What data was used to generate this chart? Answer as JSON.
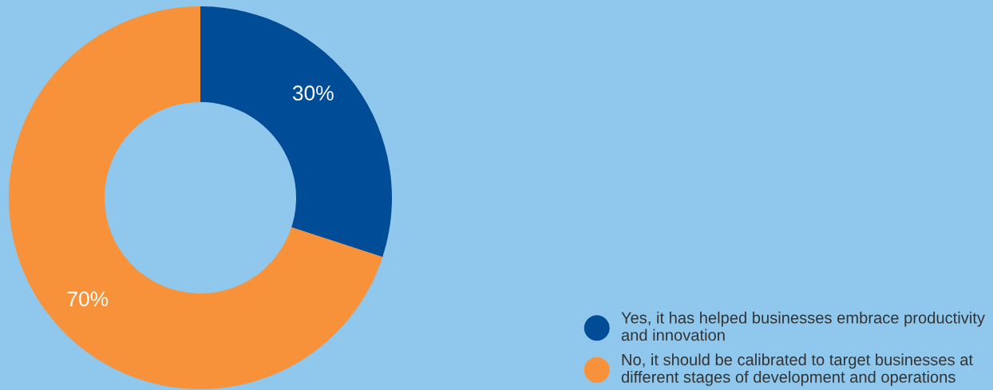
{
  "chart_data": {
    "type": "donut",
    "categories": [
      "Yes, it has helped businesses embrace productivity\nand innovation",
      "No, it should be calibrated to target businesses at\ndifferent stages of development and operations"
    ],
    "values": [
      30,
      70
    ],
    "colors": [
      "#004c97",
      "#f7923a"
    ],
    "value_labels": [
      "30%",
      "70%"
    ],
    "legend": "bottom right"
  }
}
